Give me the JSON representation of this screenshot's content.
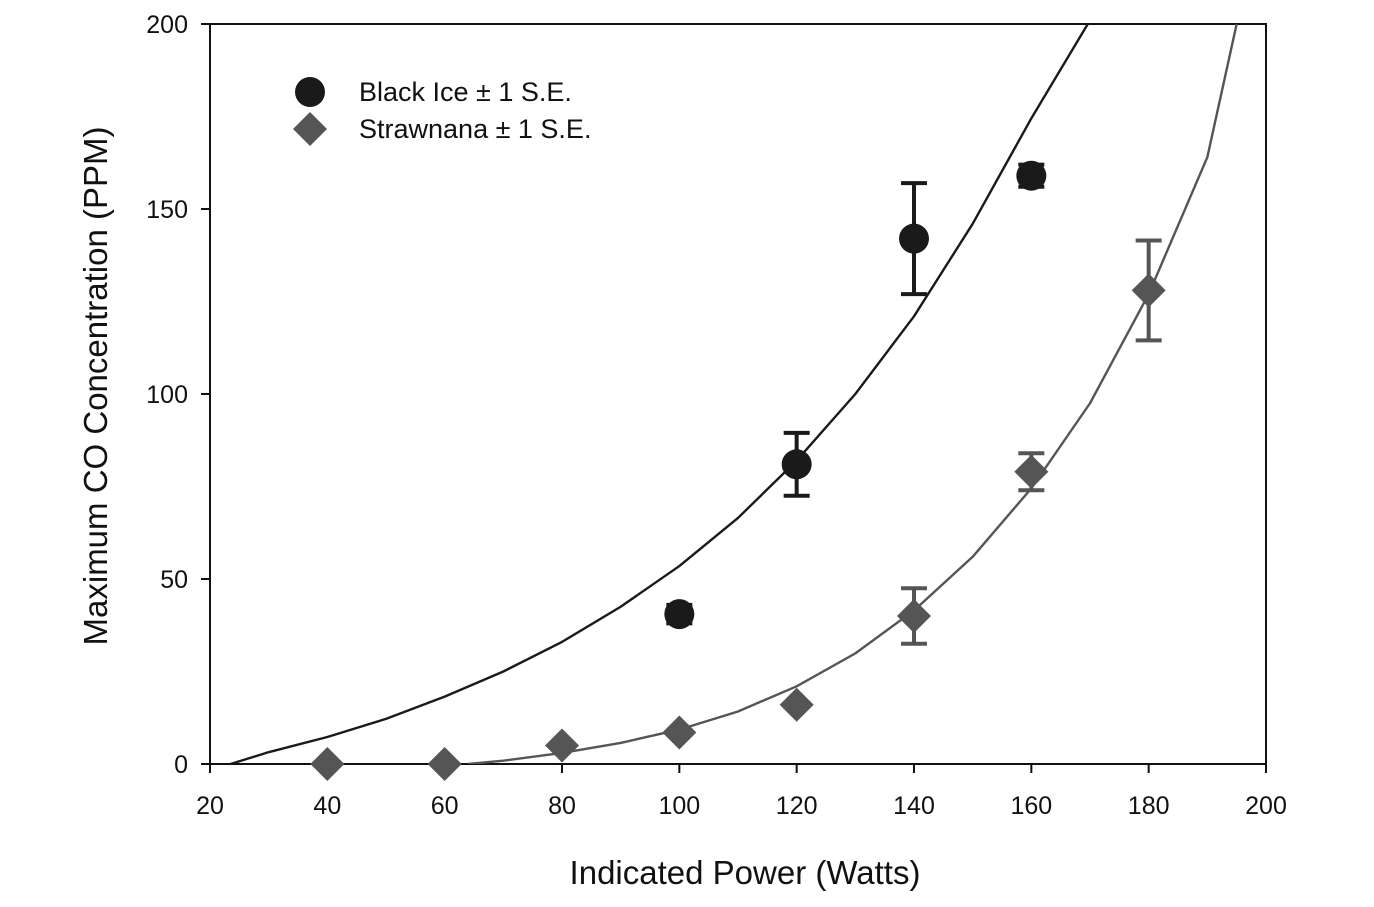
{
  "chart_data": {
    "type": "scatter",
    "title": "",
    "xlabel": "Indicated Power (Watts)",
    "ylabel": "Maximum CO Concentration (PPM)",
    "xlim": [
      20,
      200
    ],
    "ylim": [
      0,
      200
    ],
    "xticks": [
      "20",
      "40",
      "60",
      "80",
      "100",
      "120",
      "140",
      "160",
      "180",
      "200"
    ],
    "yticks": [
      "0",
      "50",
      "100",
      "150",
      "200"
    ],
    "grid": false,
    "legend_position": "top-left",
    "series": [
      {
        "name": "Black Ice ± 1 S.E.",
        "marker": "circle",
        "color": "#1a1a1a",
        "x": [
          100,
          120,
          140,
          160
        ],
        "y": [
          40.5,
          81,
          142,
          159
        ],
        "se": [
          2.5,
          8.5,
          15,
          3
        ],
        "fit": {
          "x": [
            23.5,
            30,
            40,
            50,
            60,
            70,
            80,
            90,
            100,
            110,
            120,
            130,
            140,
            150,
            160,
            170
          ],
          "y": [
            0,
            3.2,
            7.3,
            12.2,
            18.2,
            25.0,
            33.0,
            42.5,
            53.5,
            66.5,
            82.0,
            100.0,
            121.0,
            146.0,
            174.5,
            201.0
          ]
        }
      },
      {
        "name": "Strawnana ± 1 S.E.",
        "marker": "diamond",
        "color": "#555555",
        "x": [
          40,
          60,
          80,
          100,
          120,
          140,
          160,
          180
        ],
        "y": [
          0,
          0,
          5,
          8.5,
          16,
          40,
          79,
          128
        ],
        "se": [
          0,
          0,
          0,
          0,
          0,
          7.5,
          5,
          13.5
        ],
        "fit": {
          "x": [
            64,
            70,
            80,
            90,
            100,
            110,
            120,
            130,
            140,
            150,
            160,
            170,
            180,
            190,
            195
          ],
          "y": [
            0,
            0.9,
            3.0,
            5.7,
            9.3,
            14.2,
            21.0,
            29.9,
            41.5,
            56.0,
            74.5,
            97.5,
            127.0,
            164.0,
            200.0
          ]
        }
      }
    ]
  }
}
